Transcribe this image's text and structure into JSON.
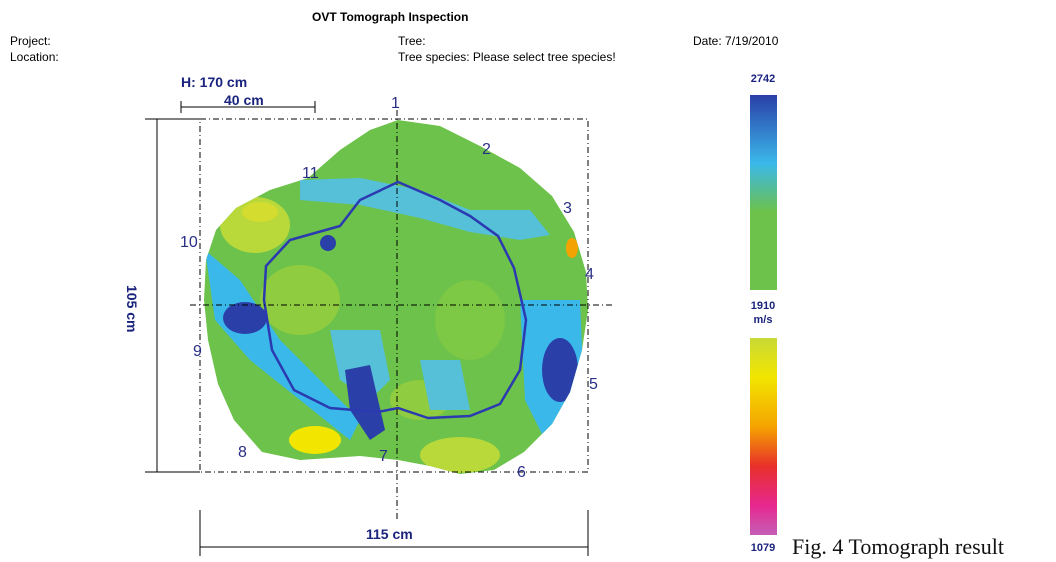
{
  "report": {
    "title": "OVT Tomograph Inspection",
    "project_label": "Project:",
    "location_label": "Location:",
    "tree_label": "Tree:",
    "species_label": "Tree species: Please select tree species!",
    "date_label": "Date: 7/19/2010"
  },
  "dimensions": {
    "height": "H: 170 cm",
    "ruler": "40 cm",
    "depth": "105 cm",
    "width": "115 cm"
  },
  "sensors": [
    "1",
    "2",
    "3",
    "4",
    "5",
    "6",
    "7",
    "8",
    "9",
    "10",
    "11"
  ],
  "scale": {
    "max": "2742",
    "mid": "1910",
    "unit": "m/s",
    "min": "1079",
    "colors": [
      "#2a3fa8",
      "#3bb8ea",
      "#6cc24a",
      "#c8d936",
      "#f2e600",
      "#f5a300",
      "#e8302a",
      "#e8278f",
      "#c45fb5"
    ]
  },
  "caption": "Fig. 4 Tomograph result"
}
